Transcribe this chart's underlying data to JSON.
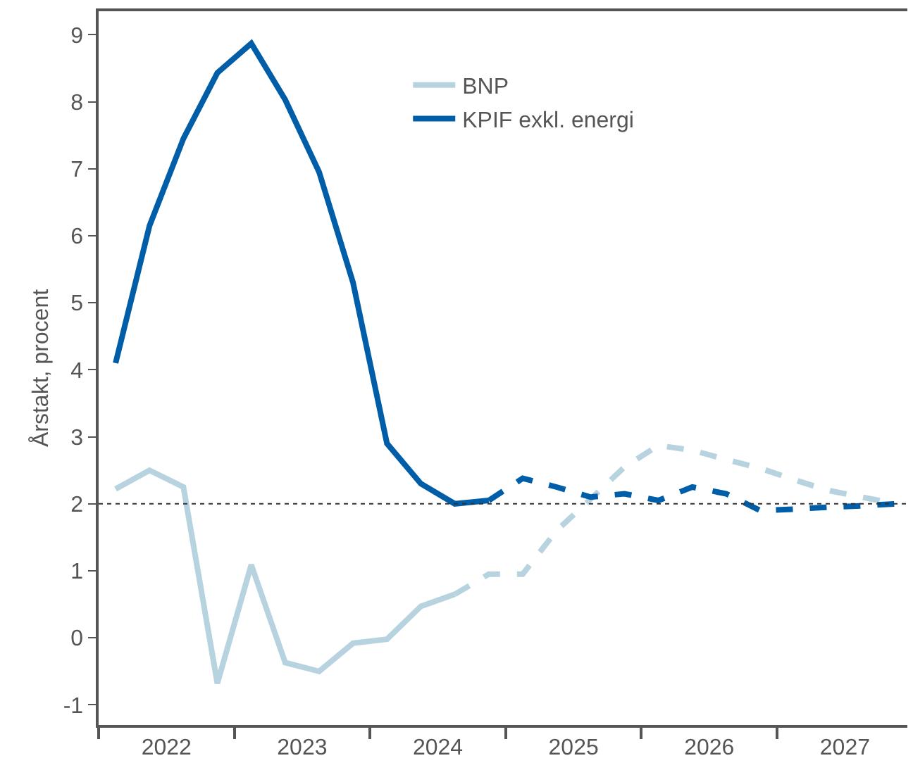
{
  "chart_data": {
    "type": "line",
    "ylabel": "Årstakt, procent",
    "xlim": [
      2022,
      2027.96
    ],
    "xticks": [
      {
        "value": 2022,
        "label": null
      },
      {
        "value": 2022.5,
        "label": "2022"
      },
      {
        "value": 2023,
        "label": null
      },
      {
        "value": 2023.5,
        "label": "2023"
      },
      {
        "value": 2024,
        "label": null
      },
      {
        "value": 2024.5,
        "label": "2024"
      },
      {
        "value": 2025,
        "label": null
      },
      {
        "value": 2025.5,
        "label": "2025"
      },
      {
        "value": 2026,
        "label": null
      },
      {
        "value": 2026.5,
        "label": "2026"
      },
      {
        "value": 2027,
        "label": null
      },
      {
        "value": 2027.5,
        "label": "2027"
      }
    ],
    "ylim": [
      -1.3,
      9.35
    ],
    "yticks": [
      -1,
      0,
      1,
      2,
      3,
      4,
      5,
      6,
      7,
      8,
      9
    ],
    "legend": "top",
    "marker": "none",
    "ref_lines": [
      {
        "axis": "y",
        "value": 2,
        "label": null,
        "color": "#333333",
        "line_style": "dotted"
      }
    ],
    "series": [
      {
        "name": "BNP",
        "color": "#b8d3e0",
        "line_style": "solid",
        "x": [
          2022.125,
          2022.375,
          2022.625,
          2022.875,
          2023.125,
          2023.375,
          2023.625,
          2023.875,
          2024.125,
          2024.375,
          2024.625
        ],
        "values": [
          2.22,
          2.5,
          2.25,
          -0.68,
          1.09,
          -0.37,
          -0.5,
          -0.08,
          -0.02,
          0.47,
          0.65
        ]
      },
      {
        "color": "#b8d3e0",
        "line_style": "dashed",
        "x": [
          2024.625,
          2024.875,
          2025.125,
          2025.375,
          2025.625,
          2025.875,
          2026.125,
          2026.375,
          2026.625,
          2026.875,
          2027.125,
          2027.375,
          2027.625,
          2027.875
        ],
        "values": [
          0.65,
          0.95,
          0.95,
          1.6,
          2.07,
          2.55,
          2.87,
          2.8,
          2.66,
          2.53,
          2.36,
          2.2,
          2.1,
          2.0
        ]
      },
      {
        "name": "KPIF exkl. energi",
        "color": "#005ea8",
        "line_style": "solid",
        "x": [
          2022.125,
          2022.375,
          2022.625,
          2022.875,
          2023.125,
          2023.375,
          2023.625,
          2023.875,
          2024.125,
          2024.375,
          2024.625,
          2024.875
        ],
        "values": [
          4.1,
          6.15,
          7.45,
          8.43,
          8.87,
          8.03,
          6.95,
          5.3,
          2.9,
          2.3,
          2.0,
          2.05
        ]
      },
      {
        "color": "#005ea8",
        "line_style": "dashed",
        "x": [
          2024.875,
          2025.125,
          2025.375,
          2025.625,
          2025.875,
          2026.125,
          2026.375,
          2026.625,
          2026.875,
          2027.125,
          2027.375,
          2027.625,
          2027.875
        ],
        "values": [
          2.05,
          2.38,
          2.25,
          2.1,
          2.15,
          2.05,
          2.25,
          2.15,
          1.9,
          1.92,
          1.95,
          1.97,
          2.0
        ]
      }
    ]
  }
}
